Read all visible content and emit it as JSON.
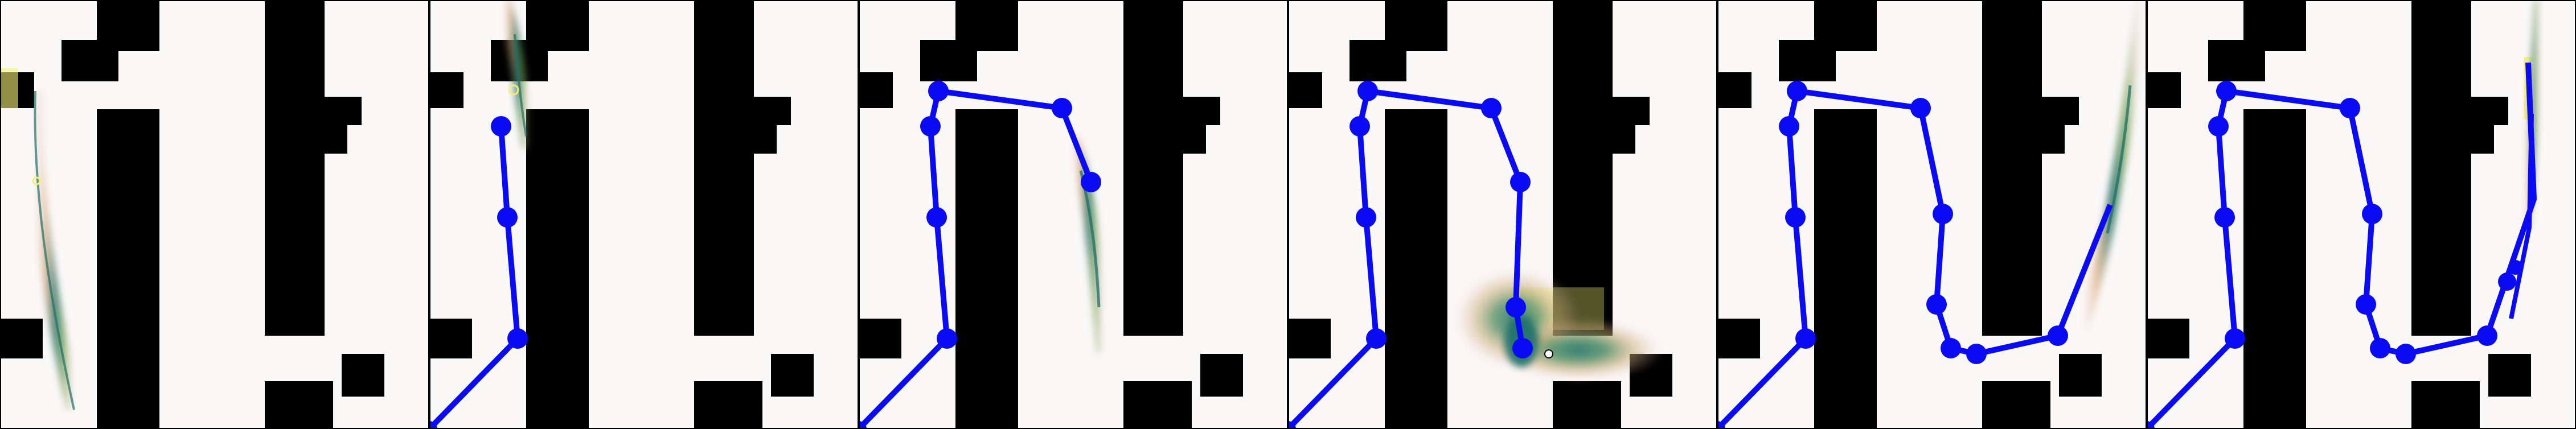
{
  "figure": {
    "panel_count": 6,
    "colors": {
      "background": "#fbf8f8",
      "obstacle": "#000000",
      "path": "#0a0af5",
      "heat_low": "#d9a36b",
      "heat_mid": "#6b9a3e",
      "heat_high": "#1f6f6a",
      "target_marker": "#f4f076",
      "frame": "#000000"
    }
  }
}
